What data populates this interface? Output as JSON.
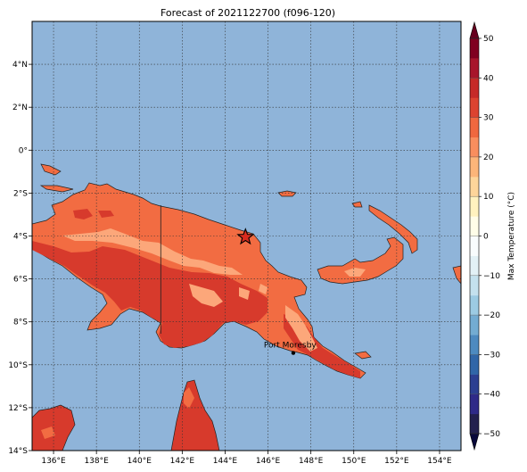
{
  "title": "Forecast of 2021122700 (f096-120)",
  "map": {
    "ocean_color": "#8fb4d9",
    "lon_range": [
      135,
      155
    ],
    "lat_range": [
      -14,
      6
    ],
    "lon_ticks": [
      136,
      138,
      140,
      142,
      144,
      146,
      148,
      150,
      152,
      154
    ],
    "lon_labels": [
      "136°E",
      "138°E",
      "140°E",
      "142°E",
      "144°E",
      "146°E",
      "148°E",
      "150°E",
      "152°E",
      "154°E"
    ],
    "lat_ticks": [
      4,
      2,
      0,
      -2,
      -4,
      -6,
      -8,
      -10,
      -12,
      -14
    ],
    "lat_labels": [
      "4°N",
      "2°N",
      "0°",
      "2°S",
      "4°S",
      "6°S",
      "8°S",
      "10°S",
      "12°S",
      "14°S"
    ],
    "gridlines": true,
    "border_lon": 141,
    "marker": {
      "type": "star",
      "lon": 144.95,
      "lat": -4.05,
      "color": "#d92b1e"
    },
    "places": [
      {
        "name": "Port Moresby",
        "lon": 147.18,
        "lat": -9.45
      }
    ]
  },
  "colorbar": {
    "label": "Max Temperature (°C)",
    "ticks": [
      "50",
      "40",
      "30",
      "20",
      "10",
      "0",
      "−10",
      "−20",
      "−30",
      "−40",
      "−50"
    ],
    "range": [
      -50,
      50
    ],
    "step": 5,
    "colors": [
      "#23204e",
      "#2f2a88",
      "#2c3f91",
      "#3066a8",
      "#4d8ac0",
      "#73acd2",
      "#9ccbe3",
      "#c4e1ee",
      "#e3f1f6",
      "#f9fcfd",
      "#fffde8",
      "#fff2bf",
      "#fdd59a",
      "#fcb579",
      "#f98e5e",
      "#f0683f",
      "#dc4330",
      "#c62a28",
      "#a8152b",
      "#800020"
    ]
  }
}
